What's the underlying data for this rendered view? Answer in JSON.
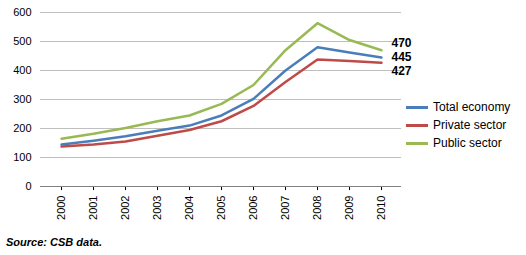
{
  "chart_data": {
    "type": "line",
    "caption": "Source: CSB data.",
    "categories": [
      "2000",
      "2001",
      "2002",
      "2003",
      "2004",
      "2005",
      "2006",
      "2007",
      "2008",
      "2009",
      "2010"
    ],
    "series": [
      {
        "name": "Total economy",
        "color": "#4a7ebb",
        "values": [
          145,
          158,
          173,
          192,
          210,
          245,
          302,
          400,
          480,
          462,
          445
        ]
      },
      {
        "name": "Private sector",
        "color": "#be4b48",
        "values": [
          138,
          145,
          155,
          175,
          195,
          225,
          278,
          360,
          438,
          433,
          427
        ]
      },
      {
        "name": "Public sector",
        "color": "#98b954",
        "values": [
          165,
          182,
          202,
          225,
          245,
          285,
          350,
          470,
          563,
          505,
          470
        ]
      }
    ],
    "annotations": [
      {
        "text": "470",
        "series": "Public sector"
      },
      {
        "text": "445",
        "series": "Total economy"
      },
      {
        "text": "427",
        "series": "Private sector"
      }
    ],
    "ylim": [
      0,
      600
    ],
    "yticks": [
      0,
      100,
      200,
      300,
      400,
      500,
      600
    ],
    "grid": true,
    "legend": "right"
  }
}
